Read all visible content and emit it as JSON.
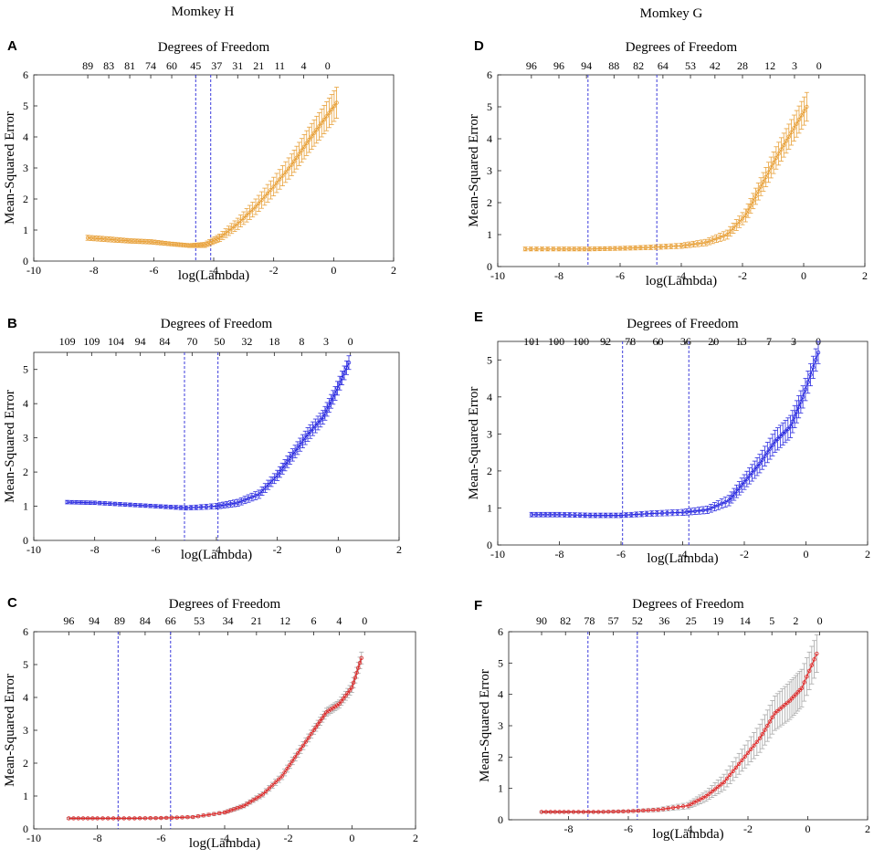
{
  "column_titles": [
    "Momkey H",
    "Momkey G"
  ],
  "chart_data": [
    {
      "panel": "A",
      "type": "line",
      "color": "#E8A13A",
      "errcolor": "#E8A13A",
      "title": "Degrees of Freedom",
      "xlabel": "log(Lambda)",
      "ylabel": "Mean-Squared Error",
      "xlim": [
        -10,
        2
      ],
      "ylim": [
        0,
        6
      ],
      "xticks": [
        -10,
        -8,
        -6,
        -4,
        -2,
        0,
        2
      ],
      "yticks": [
        0,
        1,
        2,
        3,
        4,
        5,
        6
      ],
      "df_ticks": [
        {
          "x": -8.2,
          "label": "89"
        },
        {
          "x": -7.5,
          "label": "83"
        },
        {
          "x": -6.8,
          "label": "81"
        },
        {
          "x": -6.1,
          "label": "74"
        },
        {
          "x": -5.4,
          "label": "60"
        },
        {
          "x": -4.6,
          "label": "45"
        },
        {
          "x": -3.9,
          "label": "37"
        },
        {
          "x": -3.2,
          "label": "31"
        },
        {
          "x": -2.5,
          "label": "21"
        },
        {
          "x": -1.8,
          "label": "11"
        },
        {
          "x": -1.0,
          "label": "4"
        },
        {
          "x": -0.2,
          "label": "0"
        }
      ],
      "vlines": [
        -4.6,
        -4.1
      ],
      "curve_x": [
        -8.2,
        -7.5,
        -6.8,
        -6.1,
        -5.4,
        -4.8,
        -4.3,
        -3.8,
        -3.2,
        -2.6,
        -2.0,
        -1.4,
        -0.9,
        -0.4,
        0.1
      ],
      "curve_y": [
        0.75,
        0.7,
        0.65,
        0.62,
        0.55,
        0.5,
        0.52,
        0.75,
        1.2,
        1.75,
        2.4,
        3.1,
        3.8,
        4.45,
        5.1
      ],
      "err_y": [
        0.08,
        0.08,
        0.07,
        0.07,
        0.06,
        0.06,
        0.08,
        0.12,
        0.18,
        0.25,
        0.3,
        0.35,
        0.4,
        0.45,
        0.5
      ]
    },
    {
      "panel": "B",
      "type": "line",
      "color": "#2C2CE0",
      "errcolor": "#2C2CE0",
      "title": "Degrees of Freedom",
      "xlabel": "log(Lambda)",
      "ylabel": "Mean-Squared Error",
      "xlim": [
        -10,
        2
      ],
      "ylim": [
        0,
        5.5
      ],
      "xticks": [
        -10,
        -8,
        -6,
        -4,
        -2,
        0,
        2
      ],
      "yticks": [
        0,
        1,
        2,
        3,
        4,
        5
      ],
      "df_ticks": [
        {
          "x": -8.9,
          "label": "109"
        },
        {
          "x": -8.1,
          "label": "109"
        },
        {
          "x": -7.3,
          "label": "104"
        },
        {
          "x": -6.5,
          "label": "94"
        },
        {
          "x": -5.7,
          "label": "84"
        },
        {
          "x": -4.8,
          "label": "70"
        },
        {
          "x": -3.9,
          "label": "50"
        },
        {
          "x": -3.0,
          "label": "32"
        },
        {
          "x": -2.1,
          "label": "18"
        },
        {
          "x": -1.2,
          "label": "8"
        },
        {
          "x": -0.4,
          "label": "3"
        },
        {
          "x": 0.4,
          "label": "0"
        }
      ],
      "vlines": [
        -5.05,
        -3.95
      ],
      "curve_x": [
        -8.9,
        -8.0,
        -7.0,
        -6.0,
        -5.0,
        -4.0,
        -3.3,
        -2.6,
        -2.0,
        -1.5,
        -1.0,
        -0.5,
        -0.1,
        0.35
      ],
      "curve_y": [
        1.12,
        1.1,
        1.05,
        1.0,
        0.95,
        1.0,
        1.1,
        1.35,
        1.9,
        2.5,
        3.1,
        3.6,
        4.3,
        5.2
      ],
      "err_y": [
        0.05,
        0.05,
        0.05,
        0.05,
        0.06,
        0.08,
        0.1,
        0.12,
        0.15,
        0.18,
        0.2,
        0.2,
        0.2,
        0.2
      ]
    },
    {
      "panel": "C",
      "type": "line",
      "color": "#E02A2A",
      "errcolor": "#A8A8A8",
      "title": "Degrees of Freedom",
      "xlabel": "log(Lambda)",
      "ylabel": "Mean-Squared Error",
      "xlim": [
        -10,
        2
      ],
      "ylim": [
        0,
        6
      ],
      "xticks": [
        -10,
        -8,
        -6,
        -4,
        -2,
        0,
        2
      ],
      "yticks": [
        0,
        1,
        2,
        3,
        4,
        5,
        6
      ],
      "df_ticks": [
        {
          "x": -8.9,
          "label": "96"
        },
        {
          "x": -8.1,
          "label": "94"
        },
        {
          "x": -7.3,
          "label": "89"
        },
        {
          "x": -6.5,
          "label": "84"
        },
        {
          "x": -5.7,
          "label": "66"
        },
        {
          "x": -4.8,
          "label": "53"
        },
        {
          "x": -3.9,
          "label": "34"
        },
        {
          "x": -3.0,
          "label": "21"
        },
        {
          "x": -2.1,
          "label": "12"
        },
        {
          "x": -1.2,
          "label": "6"
        },
        {
          "x": -0.4,
          "label": "4"
        },
        {
          "x": 0.4,
          "label": "0"
        }
      ],
      "vlines": [
        -7.35,
        -5.7
      ],
      "curve_x": [
        -8.9,
        -8.0,
        -7.0,
        -6.0,
        -5.0,
        -4.0,
        -3.4,
        -2.8,
        -2.2,
        -1.7,
        -1.2,
        -0.8,
        -0.4,
        0.0,
        0.3
      ],
      "curve_y": [
        0.32,
        0.32,
        0.32,
        0.33,
        0.36,
        0.5,
        0.7,
        1.05,
        1.6,
        2.3,
        3.0,
        3.55,
        3.8,
        4.3,
        5.2
      ],
      "err_y": [
        0.03,
        0.03,
        0.03,
        0.03,
        0.04,
        0.05,
        0.06,
        0.08,
        0.1,
        0.12,
        0.12,
        0.12,
        0.12,
        0.15,
        0.18
      ]
    },
    {
      "panel": "D",
      "type": "line",
      "color": "#E8A13A",
      "errcolor": "#E8A13A",
      "title": "Degrees of Freedom",
      "xlabel": "log(Lambda)",
      "ylabel": "Mean-Squared Error",
      "xlim": [
        -10,
        2
      ],
      "ylim": [
        0,
        6
      ],
      "xticks": [
        -10,
        -8,
        -6,
        -4,
        -2,
        0,
        2
      ],
      "yticks": [
        0,
        1,
        2,
        3,
        4,
        5,
        6
      ],
      "df_ticks": [
        {
          "x": -8.9,
          "label": "96"
        },
        {
          "x": -8.0,
          "label": "96"
        },
        {
          "x": -7.1,
          "label": "94"
        },
        {
          "x": -6.2,
          "label": "88"
        },
        {
          "x": -5.4,
          "label": "82"
        },
        {
          "x": -4.6,
          "label": "64"
        },
        {
          "x": -3.7,
          "label": "53"
        },
        {
          "x": -2.9,
          "label": "42"
        },
        {
          "x": -2.0,
          "label": "28"
        },
        {
          "x": -1.1,
          "label": "12"
        },
        {
          "x": -0.3,
          "label": "3"
        },
        {
          "x": 0.5,
          "label": "0"
        }
      ],
      "vlines": [
        -7.05,
        -4.8
      ],
      "curve_x": [
        -9.1,
        -8.0,
        -7.0,
        -6.0,
        -5.0,
        -4.0,
        -3.2,
        -2.5,
        -1.9,
        -1.4,
        -0.9,
        -0.4,
        0.1
      ],
      "curve_y": [
        0.55,
        0.55,
        0.55,
        0.57,
        0.6,
        0.65,
        0.75,
        1.0,
        1.6,
        2.5,
        3.4,
        4.2,
        5.0
      ],
      "err_y": [
        0.06,
        0.06,
        0.06,
        0.06,
        0.07,
        0.08,
        0.1,
        0.14,
        0.2,
        0.28,
        0.35,
        0.4,
        0.45
      ]
    },
    {
      "panel": "E",
      "type": "line",
      "color": "#2C2CE0",
      "errcolor": "#2C2CE0",
      "title": "Degrees of Freedom",
      "xlabel": "log(Lambda)",
      "ylabel": "Mean-Squared Error",
      "xlim": [
        -10,
        2
      ],
      "ylim": [
        0,
        5.5
      ],
      "xticks": [
        -10,
        -8,
        -6,
        -4,
        -2,
        0,
        2
      ],
      "yticks": [
        0,
        1,
        2,
        3,
        4,
        5
      ],
      "df_ticks": [
        {
          "x": -8.9,
          "label": "101"
        },
        {
          "x": -8.1,
          "label": "100"
        },
        {
          "x": -7.3,
          "label": "100"
        },
        {
          "x": -6.5,
          "label": "92"
        },
        {
          "x": -5.7,
          "label": "78"
        },
        {
          "x": -4.8,
          "label": "60"
        },
        {
          "x": -3.9,
          "label": "36"
        },
        {
          "x": -3.0,
          "label": "20"
        },
        {
          "x": -2.1,
          "label": "13"
        },
        {
          "x": -1.2,
          "label": "7"
        },
        {
          "x": -0.4,
          "label": "3"
        },
        {
          "x": 0.4,
          "label": "0"
        }
      ],
      "vlines": [
        -5.95,
        -3.8
      ],
      "curve_x": [
        -8.9,
        -8.0,
        -7.0,
        -6.0,
        -5.0,
        -4.0,
        -3.2,
        -2.5,
        -2.0,
        -1.5,
        -1.0,
        -0.5,
        -0.1,
        0.4
      ],
      "curve_y": [
        0.82,
        0.82,
        0.8,
        0.8,
        0.85,
        0.88,
        0.95,
        1.2,
        1.7,
        2.2,
        2.8,
        3.2,
        4.0,
        5.2
      ],
      "err_y": [
        0.06,
        0.06,
        0.06,
        0.06,
        0.07,
        0.08,
        0.1,
        0.14,
        0.2,
        0.25,
        0.3,
        0.3,
        0.3,
        0.3
      ]
    },
    {
      "panel": "F",
      "type": "line",
      "color": "#E02A2A",
      "errcolor": "#A8A8A8",
      "title": "Degrees of Freedom",
      "xlabel": "log(Lambda)",
      "ylabel": "Mean-Squared Error",
      "xlim": [
        -10,
        2
      ],
      "ylim": [
        0,
        6
      ],
      "xticks": [
        -8,
        -6,
        -4,
        -2,
        0,
        2
      ],
      "yticks": [
        0,
        1,
        2,
        3,
        4,
        5,
        6
      ],
      "df_ticks": [
        {
          "x": -8.9,
          "label": "90"
        },
        {
          "x": -8.1,
          "label": "82"
        },
        {
          "x": -7.3,
          "label": "78"
        },
        {
          "x": -6.5,
          "label": "57"
        },
        {
          "x": -5.7,
          "label": "52"
        },
        {
          "x": -4.8,
          "label": "36"
        },
        {
          "x": -3.9,
          "label": "25"
        },
        {
          "x": -3.0,
          "label": "19"
        },
        {
          "x": -2.1,
          "label": "14"
        },
        {
          "x": -1.2,
          "label": "5"
        },
        {
          "x": -0.4,
          "label": "2"
        },
        {
          "x": 0.4,
          "label": "0"
        }
      ],
      "vlines": [
        -7.35,
        -5.7
      ],
      "curve_x": [
        -8.9,
        -8.0,
        -7.0,
        -6.0,
        -5.0,
        -4.0,
        -3.4,
        -2.8,
        -2.2,
        -1.6,
        -1.1,
        -0.6,
        -0.2,
        0.3
      ],
      "curve_y": [
        0.25,
        0.25,
        0.25,
        0.27,
        0.32,
        0.45,
        0.75,
        1.2,
        1.9,
        2.6,
        3.4,
        3.8,
        4.2,
        5.3
      ],
      "err_y": [
        0.03,
        0.03,
        0.03,
        0.04,
        0.06,
        0.1,
        0.16,
        0.25,
        0.35,
        0.45,
        0.55,
        0.6,
        0.6,
        0.6
      ]
    }
  ]
}
